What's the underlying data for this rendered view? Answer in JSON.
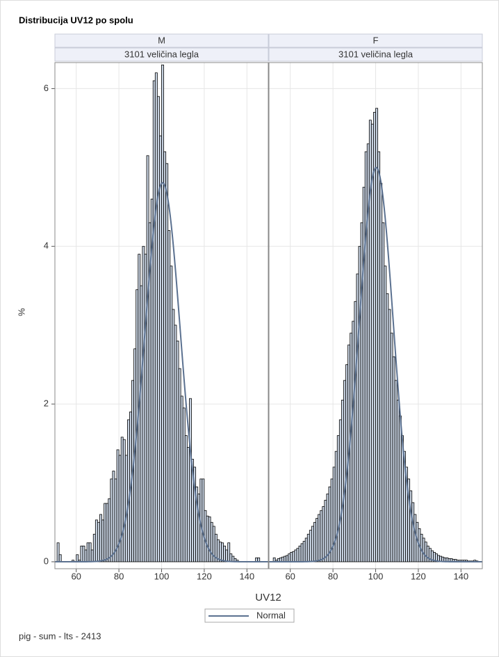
{
  "title": "Distribucija UV12 po spolu",
  "x_label": "UV12",
  "y_label": "%",
  "footnote": "pig - sum - lts - 2413",
  "legend": [
    {
      "name": "Normal",
      "color": "#5b7190"
    }
  ],
  "chart_data": [
    {
      "type": "histogram",
      "panel_label": "M",
      "subpanel_label": "3101 veličina legla",
      "color": "#c9d4e3",
      "grid": true,
      "xlim": [
        50,
        150
      ],
      "xticks": [
        60,
        80,
        100,
        120,
        140
      ],
      "ylim": [
        0,
        6.33
      ],
      "yticks": [
        0,
        2,
        4,
        6
      ],
      "bins": [
        51,
        52,
        53,
        54,
        55,
        56,
        57,
        58,
        59,
        60,
        61,
        62,
        63,
        64,
        65,
        66,
        67,
        68,
        69,
        70,
        71,
        72,
        73,
        74,
        75,
        76,
        77,
        78,
        79,
        80,
        81,
        82,
        83,
        84,
        85,
        86,
        87,
        88,
        89,
        90,
        91,
        92,
        93,
        94,
        95,
        96,
        97,
        98,
        99,
        100,
        101,
        102,
        103,
        104,
        105,
        106,
        107,
        108,
        109,
        110,
        111,
        112,
        113,
        114,
        115,
        116,
        117,
        118,
        119,
        120,
        121,
        122,
        123,
        124,
        125,
        126,
        127,
        128,
        129,
        130,
        131,
        132,
        133,
        134,
        135,
        136,
        137,
        138,
        139,
        140,
        141,
        142,
        143,
        144,
        145,
        146
      ],
      "values": [
        0.24,
        0.09,
        0,
        0,
        0,
        0,
        0,
        0.02,
        0,
        0.09,
        0.02,
        0.2,
        0.2,
        0.15,
        0.24,
        0.24,
        0.15,
        0.35,
        0.53,
        0.5,
        0.6,
        0.53,
        0.74,
        0.74,
        0.8,
        1.05,
        1.15,
        1.05,
        1.42,
        1.35,
        1.58,
        1.55,
        1.35,
        1.8,
        1.9,
        2.3,
        2.7,
        3.45,
        3.9,
        3.5,
        4.0,
        3.9,
        5.15,
        4.3,
        4.6,
        6.1,
        6.2,
        5.9,
        5.4,
        6.3,
        5.2,
        5.05,
        4.2,
        3.75,
        3.2,
        3.0,
        2.8,
        2.45,
        2.1,
        1.95,
        1.6,
        1.45,
        2.07,
        1.3,
        1.2,
        0.95,
        0.86,
        1.05,
        1.05,
        0.65,
        0.58,
        0.57,
        0.5,
        0.45,
        0.35,
        0.28,
        0.25,
        0.24,
        0.2,
        0.15,
        0.24,
        0.1,
        0.07,
        0.04,
        0.02,
        0,
        0,
        0,
        0,
        0,
        0,
        0,
        0,
        0.05,
        0.05
      ],
      "normal_fit": {
        "mean": 100.5,
        "sd": 8.3
      }
    },
    {
      "type": "histogram",
      "panel_label": "F",
      "subpanel_label": "3101 veličina legla",
      "color": "#c9d4e3",
      "grid": true,
      "xlim": [
        50,
        150
      ],
      "xticks": [
        60,
        80,
        100,
        120,
        140
      ],
      "ylim": [
        0,
        6.33
      ],
      "yticks": [
        0,
        2,
        4,
        6
      ],
      "bins": [
        52,
        53,
        54,
        55,
        56,
        57,
        58,
        59,
        60,
        61,
        62,
        63,
        64,
        65,
        66,
        67,
        68,
        69,
        70,
        71,
        72,
        73,
        74,
        75,
        76,
        77,
        78,
        79,
        80,
        81,
        82,
        83,
        84,
        85,
        86,
        87,
        88,
        89,
        90,
        91,
        92,
        93,
        94,
        95,
        96,
        97,
        98,
        99,
        100,
        101,
        102,
        103,
        104,
        105,
        106,
        107,
        108,
        109,
        110,
        111,
        112,
        113,
        114,
        115,
        116,
        117,
        118,
        119,
        120,
        121,
        122,
        123,
        124,
        125,
        126,
        127,
        128,
        129,
        130,
        131,
        132,
        133,
        134,
        135,
        136,
        137,
        138,
        139,
        140,
        141,
        142,
        143,
        144,
        145,
        146,
        147,
        148
      ],
      "values": [
        0.05,
        0.02,
        0.04,
        0.05,
        0.06,
        0.07,
        0.08,
        0.1,
        0.12,
        0.13,
        0.15,
        0.17,
        0.2,
        0.23,
        0.26,
        0.3,
        0.35,
        0.4,
        0.45,
        0.5,
        0.55,
        0.6,
        0.65,
        0.7,
        0.78,
        0.86,
        0.95,
        1.05,
        1.2,
        1.4,
        1.6,
        1.8,
        2.05,
        2.3,
        2.5,
        2.75,
        2.9,
        3.05,
        3.3,
        3.65,
        4.0,
        4.3,
        4.75,
        5.2,
        5.3,
        5.6,
        5.55,
        5.7,
        5.75,
        5.2,
        4.8,
        4.3,
        3.75,
        3.4,
        3.2,
        2.9,
        2.6,
        2.3,
        2.05,
        1.85,
        1.6,
        1.4,
        1.2,
        1.05,
        0.9,
        0.75,
        0.6,
        0.5,
        0.42,
        0.35,
        0.3,
        0.25,
        0.2,
        0.17,
        0.14,
        0.12,
        0.1,
        0.08,
        0.07,
        0.06,
        0.05,
        0.05,
        0.04,
        0.04,
        0.03,
        0.03,
        0.02,
        0.02,
        0.02,
        0.02,
        0.02,
        0.01,
        0.01,
        0.01,
        0.02,
        0.01
      ],
      "normal_fit": {
        "mean": 100.3,
        "sd": 7.98
      }
    }
  ]
}
